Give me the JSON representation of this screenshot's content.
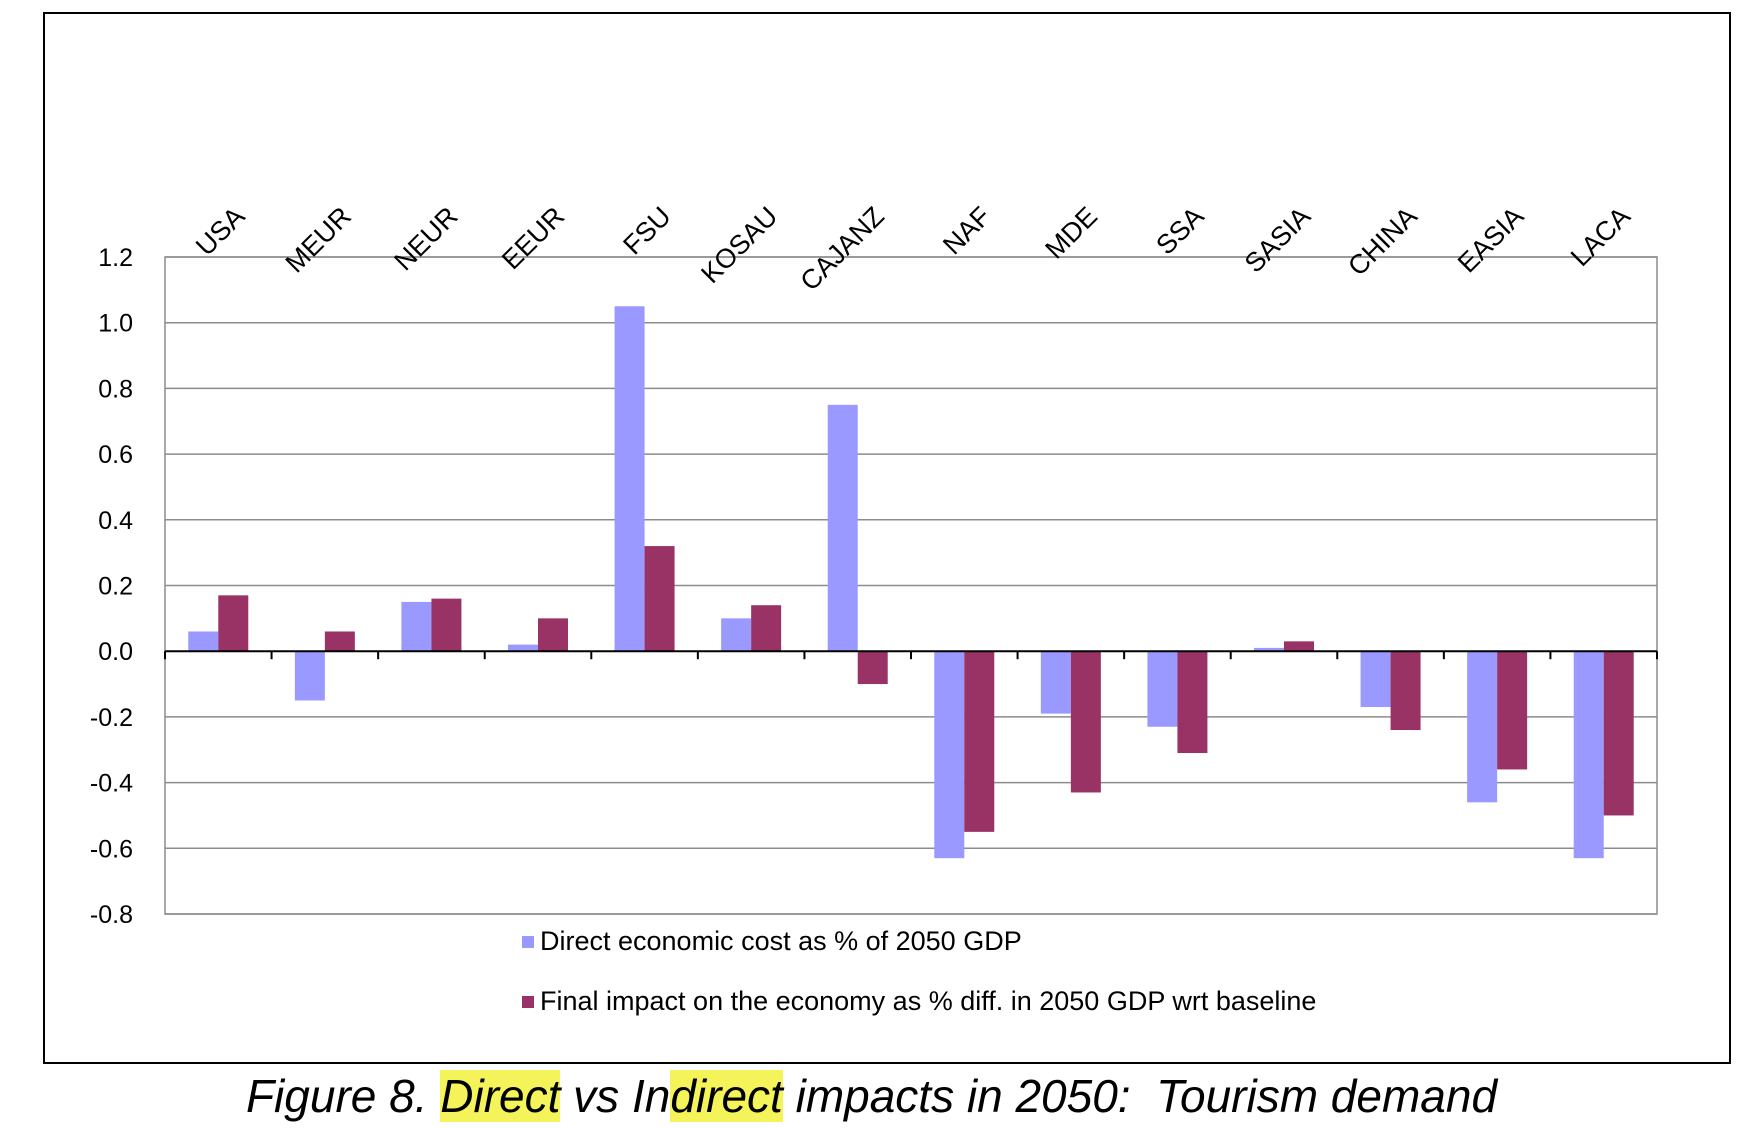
{
  "chart_data": {
    "type": "bar",
    "categories": [
      "USA",
      "MEUR",
      "NEUR",
      "EEUR",
      "FSU",
      "KOSAU",
      "CAJANZ",
      "NAF",
      "MDE",
      "SSA",
      "SASIA",
      "CHINA",
      "EASIA",
      "LACA"
    ],
    "series": [
      {
        "name": "Direct economic cost as % of 2050 GDP",
        "color": "#9999ff",
        "values": [
          0.06,
          -0.15,
          0.15,
          0.02,
          1.05,
          0.1,
          0.75,
          -0.63,
          -0.19,
          -0.23,
          0.01,
          -0.17,
          -0.46,
          -0.63
        ]
      },
      {
        "name": "Final impact on the economy as % diff. in 2050 GDP wrt baseline",
        "color": "#993366",
        "values": [
          0.17,
          0.06,
          0.16,
          0.1,
          0.32,
          0.14,
          -0.1,
          -0.55,
          -0.43,
          -0.31,
          0.03,
          -0.24,
          -0.36,
          -0.5
        ]
      }
    ],
    "ylim": [
      -0.8,
      1.2
    ],
    "yticks": [
      "1.2",
      "1.0",
      "0.8",
      "0.6",
      "0.4",
      "0.2",
      "0.0",
      "-0.2",
      "-0.4",
      "-0.6",
      "-0.8"
    ],
    "grid": true,
    "legend_position": "bottom"
  },
  "caption": {
    "prefix": "Figure 8. ",
    "hl1": "Direct",
    "mid1": " vs In",
    "hl2": "direct",
    "suffix": " impacts in 2050:  Tourism demand"
  }
}
